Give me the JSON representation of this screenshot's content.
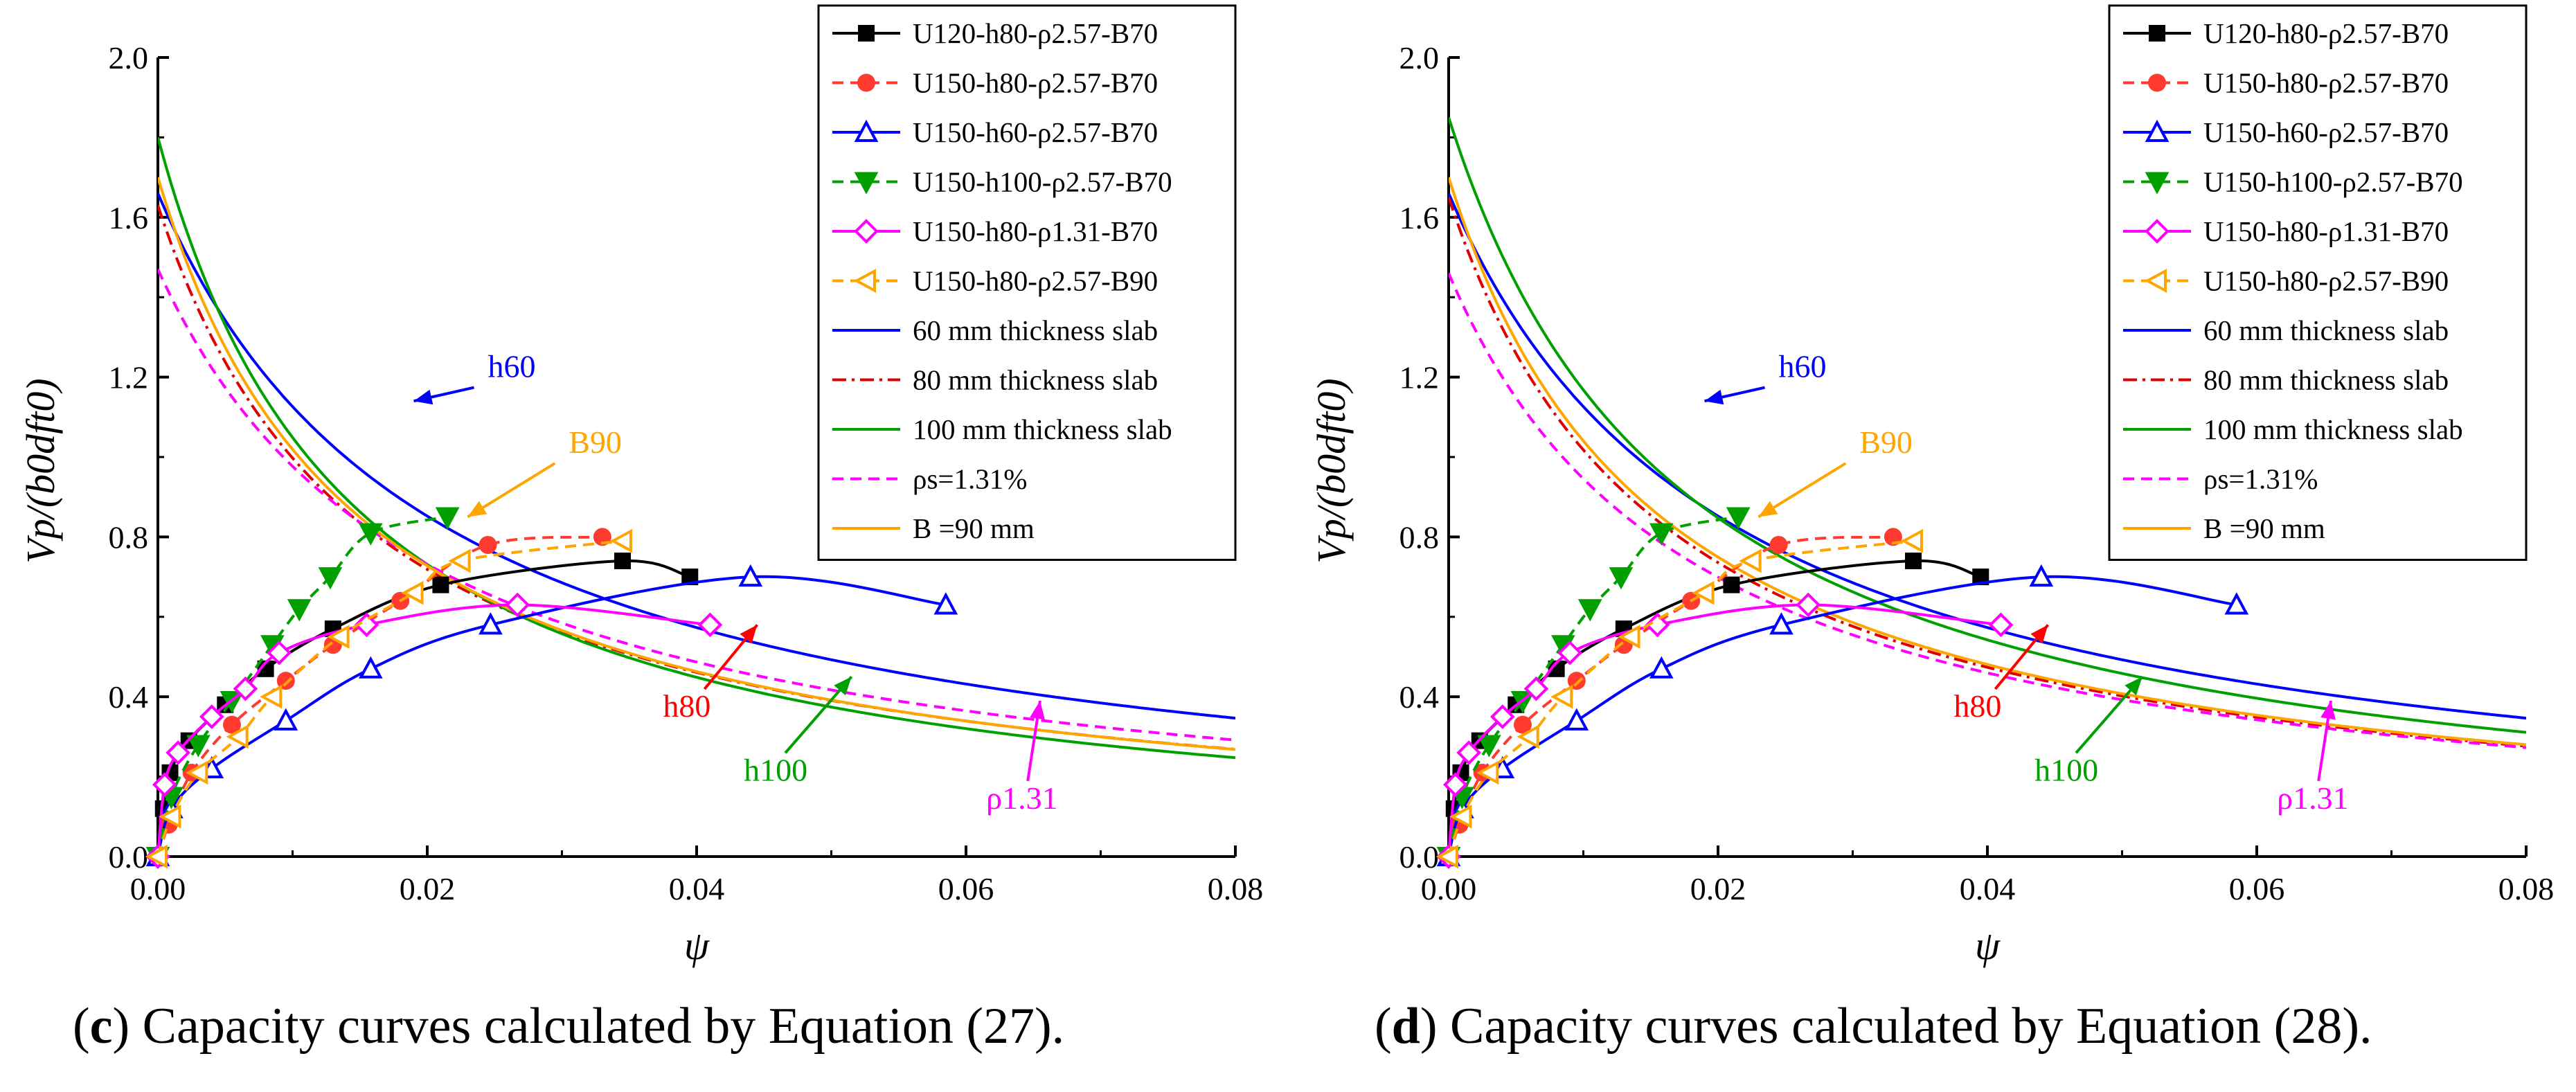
{
  "colors": {
    "black": "#000000",
    "red": "#ff3b30",
    "blue": "#0000ff",
    "green": "#00a000",
    "magenta": "#ff00ff",
    "orange": "#ffa500"
  },
  "chart_data": [
    {
      "panel": "c",
      "type": "line",
      "caption_letter": "c",
      "caption_text": " Capacity curves calculated by Equation (27).",
      "xlabel": "ψ",
      "ylabel": "Vp/(b0dft0)",
      "xlim": [
        0,
        0.08
      ],
      "ylim": [
        0,
        2.0
      ],
      "xticks": [
        "0.00",
        "0.02",
        "0.04",
        "0.06",
        "0.08"
      ],
      "yticks": [
        "0.0",
        "0.4",
        "0.8",
        "1.2",
        "1.6",
        "2.0"
      ],
      "series": [
        {
          "name": "U120-h80-ρ2.57-B70",
          "color": "#000000",
          "dash": "",
          "marker": "square",
          "x": [
            0,
            0.0004,
            0.0009,
            0.0023,
            0.005,
            0.008,
            0.013,
            0.021,
            0.0345,
            0.0395
          ],
          "y": [
            0,
            0.12,
            0.21,
            0.29,
            0.38,
            0.47,
            0.57,
            0.68,
            0.74,
            0.7
          ]
        },
        {
          "name": "U150-h80-ρ2.57-B70",
          "color": "#ff3b30",
          "dash": "16,10",
          "marker": "circle",
          "x": [
            0,
            0.0008,
            0.0025,
            0.0055,
            0.0095,
            0.013,
            0.018,
            0.0245,
            0.033
          ],
          "y": [
            0,
            0.08,
            0.21,
            0.33,
            0.44,
            0.53,
            0.64,
            0.78,
            0.8
          ]
        },
        {
          "name": "U150-h60-ρ2.57-B70",
          "color": "#0000ff",
          "dash": "",
          "marker": "triangle-up",
          "x": [
            0,
            0.001,
            0.004,
            0.0095,
            0.0158,
            0.0247,
            0.044,
            0.0585
          ],
          "y": [
            0,
            0.12,
            0.22,
            0.34,
            0.47,
            0.58,
            0.7,
            0.63
          ]
        },
        {
          "name": "U150-h100-ρ2.57-B70",
          "color": "#00a000",
          "dash": "16,10",
          "marker": "triangle-down",
          "x": [
            0,
            0.001,
            0.003,
            0.0055,
            0.0085,
            0.0105,
            0.0128,
            0.0158,
            0.0215
          ],
          "y": [
            0,
            0.15,
            0.28,
            0.39,
            0.53,
            0.62,
            0.7,
            0.81,
            0.85
          ]
        },
        {
          "name": "U150-h80-ρ1.31-B70",
          "color": "#ff00ff",
          "dash": "",
          "marker": "diamond",
          "x": [
            0,
            0.0005,
            0.0015,
            0.004,
            0.0065,
            0.009,
            0.0155,
            0.0267,
            0.041
          ],
          "y": [
            0,
            0.18,
            0.26,
            0.35,
            0.42,
            0.51,
            0.58,
            0.63,
            0.58
          ]
        },
        {
          "name": "U150-h80-ρ2.57-B90",
          "color": "#ffa500",
          "dash": "16,10",
          "marker": "triangle-left",
          "x": [
            0,
            0.001,
            0.003,
            0.006,
            0.0085,
            0.0135,
            0.019,
            0.0225,
            0.0345
          ],
          "y": [
            0,
            0.1,
            0.21,
            0.3,
            0.4,
            0.55,
            0.66,
            0.74,
            0.79
          ]
        }
      ],
      "capacity_curves": [
        {
          "name": "60 mm thickness slab",
          "color": "#0000ff",
          "dash": "",
          "a": 1.66,
          "k": 47.4,
          "p": 1.0
        },
        {
          "name": "80 mm thickness slab",
          "color": "#e00000",
          "dash": "20,8,4,8",
          "a": 1.63,
          "k": 63.4,
          "p": 1.0
        },
        {
          "name": "100 mm thickness slab",
          "color": "#00a000",
          "dash": "",
          "a": 1.8,
          "k": 63.4,
          "p": 1.1
        },
        {
          "name": "ρs=1.31%",
          "color": "#ff00ff",
          "dash": "16,10",
          "a": 1.47,
          "k": 50.5,
          "p": 1.0
        },
        {
          "name": "B =90 mm",
          "color": "#ffa500",
          "dash": "",
          "a": 1.7,
          "k": 66.8,
          "p": 1.0
        }
      ],
      "annotations": [
        {
          "text": "h60",
          "color": "#0000ff",
          "tx": 0.0245,
          "ty": 1.2,
          "ax": 0.019,
          "ay": 1.14
        },
        {
          "text": "B90",
          "color": "#ffa500",
          "tx": 0.0305,
          "ty": 1.01,
          "ax": 0.023,
          "ay": 0.85
        },
        {
          "text": "h80",
          "color": "#ff0000",
          "tx": 0.0375,
          "ty": 0.35,
          "ax": 0.0445,
          "ay": 0.58
        },
        {
          "text": "h100",
          "color": "#00a000",
          "tx": 0.0435,
          "ty": 0.19,
          "ax": 0.0515,
          "ay": 0.45
        },
        {
          "text": "ρ1.31",
          "color": "#ff00ff",
          "tx": 0.0615,
          "ty": 0.12,
          "ax": 0.0655,
          "ay": 0.39
        }
      ]
    },
    {
      "panel": "d",
      "type": "line",
      "caption_letter": "d",
      "caption_text": " Capacity curves calculated by Equation (28).",
      "xlabel": "ψ",
      "ylabel": "Vp/(b0dft0)",
      "xlim": [
        0,
        0.08
      ],
      "ylim": [
        0,
        2.0
      ],
      "xticks": [
        "0.00",
        "0.02",
        "0.04",
        "0.06",
        "0.08"
      ],
      "yticks": [
        "0.0",
        "0.4",
        "0.8",
        "1.2",
        "1.6",
        "2.0"
      ],
      "series": [
        {
          "name": "U120-h80-ρ2.57-B70",
          "color": "#000000",
          "dash": "",
          "marker": "square",
          "x": [
            0,
            0.0004,
            0.0009,
            0.0023,
            0.005,
            0.008,
            0.013,
            0.021,
            0.0345,
            0.0395
          ],
          "y": [
            0,
            0.12,
            0.21,
            0.29,
            0.38,
            0.47,
            0.57,
            0.68,
            0.74,
            0.7
          ]
        },
        {
          "name": "U150-h80-ρ2.57-B70",
          "color": "#ff3b30",
          "dash": "16,10",
          "marker": "circle",
          "x": [
            0,
            0.0008,
            0.0025,
            0.0055,
            0.0095,
            0.013,
            0.018,
            0.0245,
            0.033
          ],
          "y": [
            0,
            0.08,
            0.21,
            0.33,
            0.44,
            0.53,
            0.64,
            0.78,
            0.8
          ]
        },
        {
          "name": "U150-h60-ρ2.57-B70",
          "color": "#0000ff",
          "dash": "",
          "marker": "triangle-up",
          "x": [
            0,
            0.001,
            0.004,
            0.0095,
            0.0158,
            0.0247,
            0.044,
            0.0585
          ],
          "y": [
            0,
            0.12,
            0.22,
            0.34,
            0.47,
            0.58,
            0.7,
            0.63
          ]
        },
        {
          "name": "U150-h100-ρ2.57-B70",
          "color": "#00a000",
          "dash": "16,10",
          "marker": "triangle-down",
          "x": [
            0,
            0.001,
            0.003,
            0.0055,
            0.0085,
            0.0105,
            0.0128,
            0.0158,
            0.0215
          ],
          "y": [
            0,
            0.15,
            0.28,
            0.39,
            0.53,
            0.62,
            0.7,
            0.81,
            0.85
          ]
        },
        {
          "name": "U150-h80-ρ1.31-B70",
          "color": "#ff00ff",
          "dash": "",
          "marker": "diamond",
          "x": [
            0,
            0.0005,
            0.0015,
            0.004,
            0.0065,
            0.009,
            0.0155,
            0.0267,
            0.041
          ],
          "y": [
            0,
            0.18,
            0.26,
            0.35,
            0.42,
            0.51,
            0.58,
            0.63,
            0.58
          ]
        },
        {
          "name": "U150-h80-ρ2.57-B90",
          "color": "#ffa500",
          "dash": "16,10",
          "marker": "triangle-left",
          "x": [
            0,
            0.001,
            0.003,
            0.006,
            0.0085,
            0.0135,
            0.019,
            0.0225,
            0.0345
          ],
          "y": [
            0,
            0.1,
            0.21,
            0.3,
            0.4,
            0.55,
            0.66,
            0.74,
            0.79
          ]
        }
      ],
      "capacity_curves": [
        {
          "name": "60 mm thickness slab",
          "color": "#0000ff",
          "dash": "",
          "a": 1.66,
          "k": 47.4,
          "p": 1.0
        },
        {
          "name": "80 mm thickness slab",
          "color": "#e00000",
          "dash": "20,8,4,8",
          "a": 1.65,
          "k": 62.1,
          "p": 1.0
        },
        {
          "name": "100 mm thickness slab",
          "color": "#00a000",
          "dash": "",
          "a": 1.85,
          "k": 53.7,
          "p": 1.07
        },
        {
          "name": "ρs=1.31%",
          "color": "#ff00ff",
          "dash": "16,10",
          "a": 1.46,
          "k": 54.4,
          "p": 1.0
        },
        {
          "name": "B =90 mm",
          "color": "#ffa500",
          "dash": "",
          "a": 1.7,
          "k": 63.4,
          "p": 1.0
        }
      ],
      "annotations": [
        {
          "text": "h60",
          "color": "#0000ff",
          "tx": 0.0245,
          "ty": 1.2,
          "ax": 0.019,
          "ay": 1.14
        },
        {
          "text": "B90",
          "color": "#ffa500",
          "tx": 0.0305,
          "ty": 1.01,
          "ax": 0.023,
          "ay": 0.85
        },
        {
          "text": "h80",
          "color": "#ff0000",
          "tx": 0.0375,
          "ty": 0.35,
          "ax": 0.0445,
          "ay": 0.58
        },
        {
          "text": "h100",
          "color": "#00a000",
          "tx": 0.0435,
          "ty": 0.19,
          "ax": 0.0515,
          "ay": 0.45
        },
        {
          "text": "ρ1.31",
          "color": "#ff00ff",
          "tx": 0.0615,
          "ty": 0.12,
          "ax": 0.0655,
          "ay": 0.39
        }
      ]
    }
  ]
}
